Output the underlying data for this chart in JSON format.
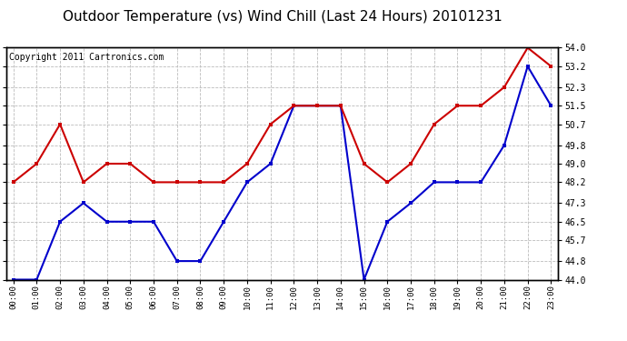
{
  "title": "Outdoor Temperature (vs) Wind Chill (Last 24 Hours) 20101231",
  "copyright": "Copyright 2011 Cartronics.com",
  "x_labels": [
    "00:00",
    "01:00",
    "02:00",
    "03:00",
    "04:00",
    "05:00",
    "06:00",
    "07:00",
    "08:00",
    "09:00",
    "10:00",
    "11:00",
    "12:00",
    "13:00",
    "14:00",
    "15:00",
    "16:00",
    "17:00",
    "18:00",
    "19:00",
    "20:00",
    "21:00",
    "22:00",
    "23:00"
  ],
  "temp_data": [
    44.0,
    44.0,
    46.5,
    47.3,
    46.5,
    46.5,
    46.5,
    44.8,
    44.8,
    46.5,
    48.2,
    49.0,
    51.5,
    51.5,
    51.5,
    44.0,
    46.5,
    47.3,
    48.2,
    48.2,
    48.2,
    49.8,
    53.2,
    51.5
  ],
  "wind_chill_data": [
    48.2,
    49.0,
    50.7,
    48.2,
    49.0,
    49.0,
    48.2,
    48.2,
    48.2,
    48.2,
    49.0,
    50.7,
    51.5,
    51.5,
    51.5,
    49.0,
    48.2,
    49.0,
    50.7,
    51.5,
    51.5,
    52.3,
    54.0,
    53.2
  ],
  "temp_color": "#0000cc",
  "wind_chill_color": "#cc0000",
  "y_min": 44.0,
  "y_max": 54.0,
  "y_ticks": [
    44.0,
    44.8,
    45.7,
    46.5,
    47.3,
    48.2,
    49.0,
    49.8,
    50.7,
    51.5,
    52.3,
    53.2,
    54.0
  ],
  "background_color": "#ffffff",
  "grid_color": "#bbbbbb",
  "title_fontsize": 11,
  "copyright_fontsize": 7
}
